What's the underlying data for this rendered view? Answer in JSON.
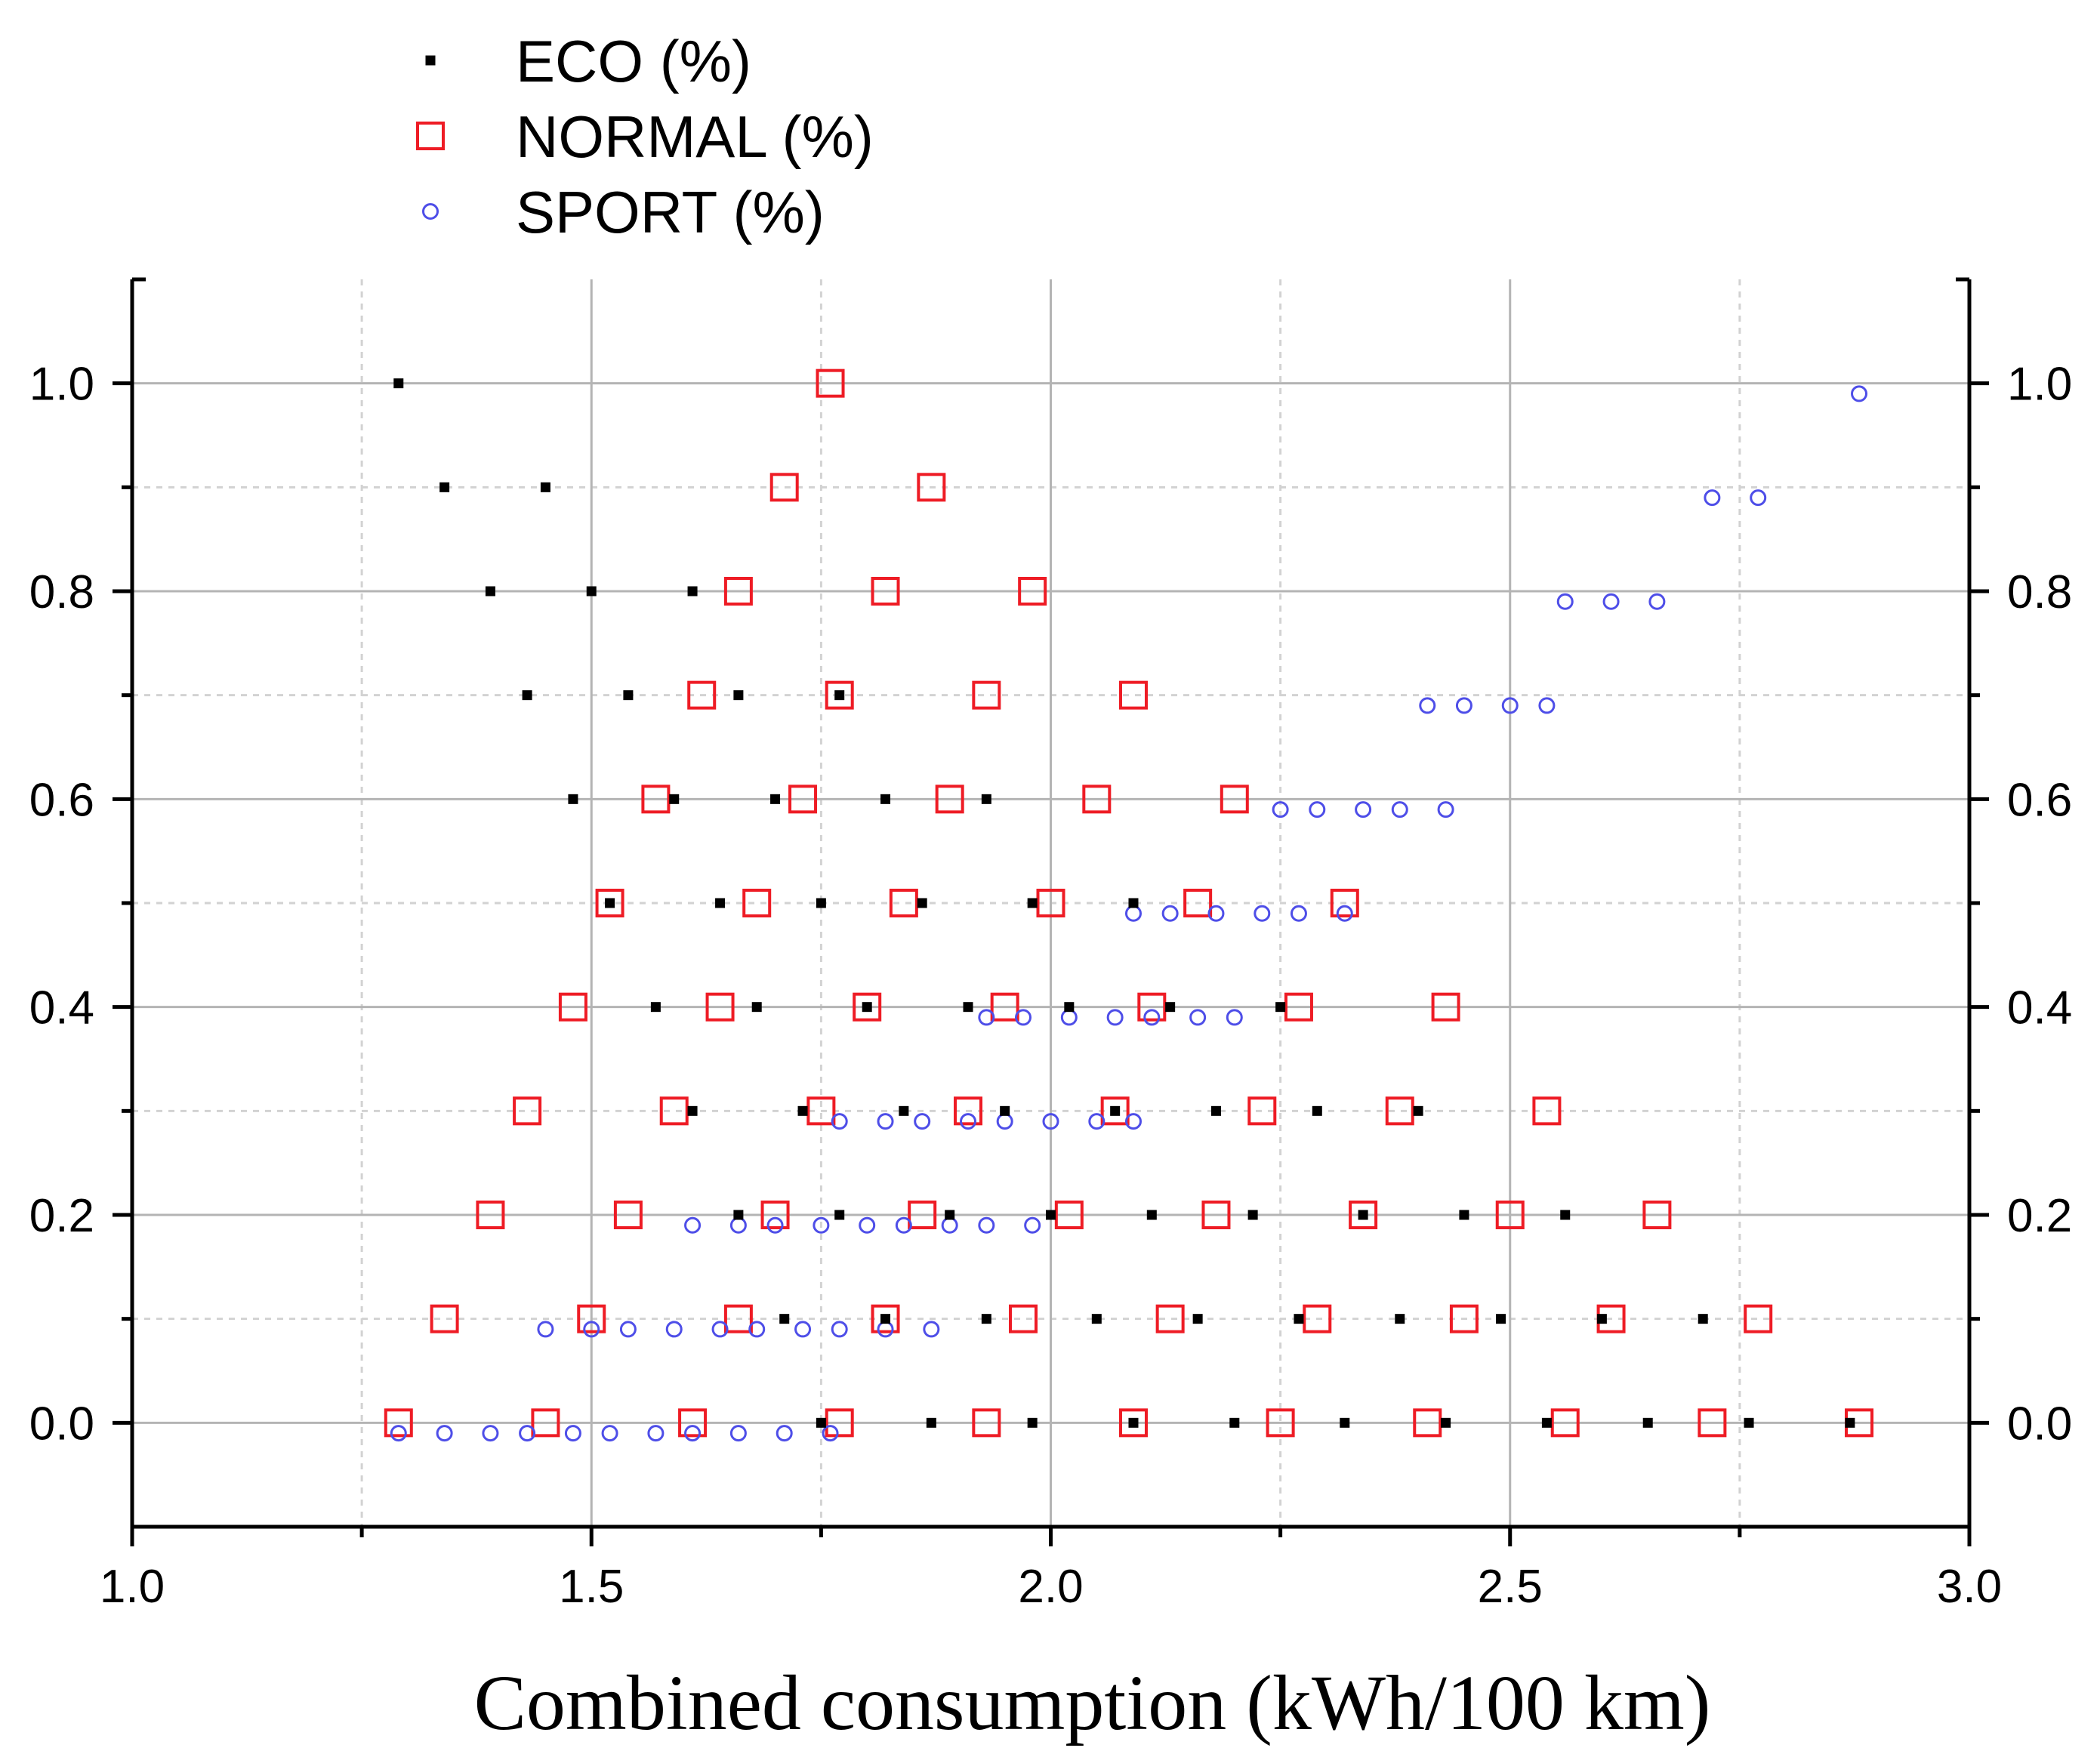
{
  "chart_data": {
    "type": "scatter",
    "title": "",
    "xlabel": "Combined consumption (kWh/100 km)",
    "ylabel": "",
    "xlim": [
      1.0,
      3.0
    ],
    "ylim": [
      -0.1,
      1.1
    ],
    "x_ticks": [
      1.0,
      1.5,
      2.0,
      2.5,
      3.0
    ],
    "x_tick_labels": [
      "1.0",
      "1.5",
      "2.0",
      "2.5",
      "3.0"
    ],
    "x_minor_ticks": [
      1.25,
      1.75,
      2.25,
      2.75
    ],
    "y_ticks": [
      0.0,
      0.2,
      0.4,
      0.6,
      0.8,
      1.0
    ],
    "y_tick_labels": [
      "0.0",
      "0.2",
      "0.4",
      "0.6",
      "0.8",
      "1.0"
    ],
    "y_minor_ticks": [
      0.1,
      0.3,
      0.5,
      0.7,
      0.9
    ],
    "right_axis_tick_labels": [
      "0.0",
      "0.2",
      "0.4",
      "0.6",
      "0.8",
      "1.0"
    ],
    "grid": true,
    "legend_position": "top-left (above plot)",
    "colors": {
      "eco": "#000000",
      "normal": "#ee1c25",
      "sport": "#4e4ee8",
      "major_grid": "#b4b4b4",
      "minor_grid": "#d2d2d2"
    },
    "series": [
      {
        "name": "ECO (%)",
        "marker": "small-square",
        "points": [
          [
            1.29,
            1.0
          ],
          [
            1.34,
            0.9
          ],
          [
            1.45,
            0.9
          ],
          [
            1.39,
            0.8
          ],
          [
            1.5,
            0.8
          ],
          [
            1.61,
            0.8
          ],
          [
            1.43,
            0.7
          ],
          [
            1.54,
            0.7
          ],
          [
            1.66,
            0.7
          ],
          [
            1.77,
            0.7
          ],
          [
            1.48,
            0.6
          ],
          [
            1.59,
            0.6
          ],
          [
            1.7,
            0.6
          ],
          [
            1.82,
            0.6
          ],
          [
            1.93,
            0.6
          ],
          [
            1.52,
            0.5
          ],
          [
            1.64,
            0.5
          ],
          [
            1.75,
            0.5
          ],
          [
            1.86,
            0.5
          ],
          [
            1.98,
            0.5
          ],
          [
            2.09,
            0.5
          ],
          [
            1.57,
            0.4
          ],
          [
            1.68,
            0.4
          ],
          [
            1.8,
            0.4
          ],
          [
            1.91,
            0.4
          ],
          [
            2.02,
            0.4
          ],
          [
            2.13,
            0.4
          ],
          [
            2.25,
            0.4
          ],
          [
            1.61,
            0.3
          ],
          [
            1.73,
            0.3
          ],
          [
            1.84,
            0.3
          ],
          [
            1.95,
            0.3
          ],
          [
            2.07,
            0.3
          ],
          [
            2.18,
            0.3
          ],
          [
            2.29,
            0.3
          ],
          [
            2.4,
            0.3
          ],
          [
            1.66,
            0.2
          ],
          [
            1.77,
            0.2
          ],
          [
            1.89,
            0.2
          ],
          [
            2.0,
            0.2
          ],
          [
            2.11,
            0.2
          ],
          [
            2.22,
            0.2
          ],
          [
            2.34,
            0.2
          ],
          [
            2.45,
            0.2
          ],
          [
            2.56,
            0.2
          ],
          [
            1.71,
            0.1
          ],
          [
            1.82,
            0.1
          ],
          [
            1.93,
            0.1
          ],
          [
            2.05,
            0.1
          ],
          [
            2.16,
            0.1
          ],
          [
            2.27,
            0.1
          ],
          [
            2.38,
            0.1
          ],
          [
            2.49,
            0.1
          ],
          [
            2.6,
            0.1
          ],
          [
            2.71,
            0.1
          ],
          [
            1.75,
            0.0
          ],
          [
            1.87,
            0.0
          ],
          [
            1.98,
            0.0
          ],
          [
            2.09,
            0.0
          ],
          [
            2.2,
            0.0
          ],
          [
            2.32,
            0.0
          ],
          [
            2.43,
            0.0
          ],
          [
            2.54,
            0.0
          ],
          [
            2.65,
            0.0
          ],
          [
            2.76,
            0.0
          ],
          [
            2.87,
            0.0
          ]
        ]
      },
      {
        "name": "NORMAL (%)",
        "marker": "open-square",
        "points": [
          [
            1.76,
            1.0
          ],
          [
            1.71,
            0.9
          ],
          [
            1.87,
            0.9
          ],
          [
            1.66,
            0.8
          ],
          [
            1.82,
            0.8
          ],
          [
            1.98,
            0.8
          ],
          [
            1.62,
            0.7
          ],
          [
            1.77,
            0.7
          ],
          [
            1.93,
            0.7
          ],
          [
            2.09,
            0.7
          ],
          [
            1.57,
            0.6
          ],
          [
            1.73,
            0.6
          ],
          [
            1.89,
            0.6
          ],
          [
            2.05,
            0.6
          ],
          [
            2.2,
            0.6
          ],
          [
            1.52,
            0.5
          ],
          [
            1.68,
            0.5
          ],
          [
            1.84,
            0.5
          ],
          [
            2.0,
            0.5
          ],
          [
            2.16,
            0.5
          ],
          [
            2.32,
            0.5
          ],
          [
            1.48,
            0.4
          ],
          [
            1.64,
            0.4
          ],
          [
            1.8,
            0.4
          ],
          [
            1.95,
            0.4
          ],
          [
            2.11,
            0.4
          ],
          [
            2.27,
            0.4
          ],
          [
            2.43,
            0.4
          ],
          [
            1.43,
            0.3
          ],
          [
            1.59,
            0.3
          ],
          [
            1.75,
            0.3
          ],
          [
            1.91,
            0.3
          ],
          [
            2.07,
            0.3
          ],
          [
            2.23,
            0.3
          ],
          [
            2.38,
            0.3
          ],
          [
            2.54,
            0.3
          ],
          [
            1.39,
            0.2
          ],
          [
            1.54,
            0.2
          ],
          [
            1.7,
            0.2
          ],
          [
            1.86,
            0.2
          ],
          [
            2.02,
            0.2
          ],
          [
            2.18,
            0.2
          ],
          [
            2.34,
            0.2
          ],
          [
            2.5,
            0.2
          ],
          [
            2.66,
            0.2
          ],
          [
            1.34,
            0.1
          ],
          [
            1.5,
            0.1
          ],
          [
            1.66,
            0.1
          ],
          [
            1.82,
            0.1
          ],
          [
            1.97,
            0.1
          ],
          [
            2.13,
            0.1
          ],
          [
            2.29,
            0.1
          ],
          [
            2.45,
            0.1
          ],
          [
            2.61,
            0.1
          ],
          [
            2.77,
            0.1
          ],
          [
            1.29,
            0.0
          ],
          [
            1.45,
            0.0
          ],
          [
            1.61,
            0.0
          ],
          [
            1.77,
            0.0
          ],
          [
            1.93,
            0.0
          ],
          [
            2.09,
            0.0
          ],
          [
            2.25,
            0.0
          ],
          [
            2.41,
            0.0
          ],
          [
            2.56,
            0.0
          ],
          [
            2.72,
            0.0
          ],
          [
            2.88,
            0.0
          ]
        ]
      },
      {
        "name": "SPORT (%)",
        "marker": "open-circle",
        "points": [
          [
            2.88,
            0.99
          ],
          [
            2.72,
            0.89
          ],
          [
            2.77,
            0.89
          ],
          [
            2.56,
            0.79
          ],
          [
            2.61,
            0.79
          ],
          [
            2.66,
            0.79
          ],
          [
            2.41,
            0.69
          ],
          [
            2.45,
            0.69
          ],
          [
            2.5,
            0.69
          ],
          [
            2.54,
            0.69
          ],
          [
            2.25,
            0.59
          ],
          [
            2.29,
            0.59
          ],
          [
            2.34,
            0.59
          ],
          [
            2.38,
            0.59
          ],
          [
            2.43,
            0.59
          ],
          [
            2.09,
            0.49
          ],
          [
            2.13,
            0.49
          ],
          [
            2.18,
            0.49
          ],
          [
            2.23,
            0.49
          ],
          [
            2.27,
            0.49
          ],
          [
            2.32,
            0.49
          ],
          [
            1.93,
            0.39
          ],
          [
            1.97,
            0.39
          ],
          [
            2.02,
            0.39
          ],
          [
            2.07,
            0.39
          ],
          [
            2.11,
            0.39
          ],
          [
            2.16,
            0.39
          ],
          [
            2.2,
            0.39
          ],
          [
            1.77,
            0.29
          ],
          [
            1.82,
            0.29
          ],
          [
            1.86,
            0.29
          ],
          [
            1.91,
            0.29
          ],
          [
            1.95,
            0.29
          ],
          [
            2.0,
            0.29
          ],
          [
            2.05,
            0.29
          ],
          [
            2.09,
            0.29
          ],
          [
            1.61,
            0.19
          ],
          [
            1.66,
            0.19
          ],
          [
            1.7,
            0.19
          ],
          [
            1.75,
            0.19
          ],
          [
            1.8,
            0.19
          ],
          [
            1.84,
            0.19
          ],
          [
            1.89,
            0.19
          ],
          [
            1.93,
            0.19
          ],
          [
            1.98,
            0.19
          ],
          [
            1.45,
            0.09
          ],
          [
            1.5,
            0.09
          ],
          [
            1.54,
            0.09
          ],
          [
            1.59,
            0.09
          ],
          [
            1.64,
            0.09
          ],
          [
            1.68,
            0.09
          ],
          [
            1.73,
            0.09
          ],
          [
            1.77,
            0.09
          ],
          [
            1.82,
            0.09
          ],
          [
            1.87,
            0.09
          ],
          [
            1.29,
            -0.01
          ],
          [
            1.34,
            -0.01
          ],
          [
            1.39,
            -0.01
          ],
          [
            1.43,
            -0.01
          ],
          [
            1.48,
            -0.01
          ],
          [
            1.52,
            -0.01
          ],
          [
            1.57,
            -0.01
          ],
          [
            1.61,
            -0.01
          ],
          [
            1.66,
            -0.01
          ],
          [
            1.71,
            -0.01
          ],
          [
            1.76,
            -0.01
          ]
        ]
      }
    ]
  }
}
